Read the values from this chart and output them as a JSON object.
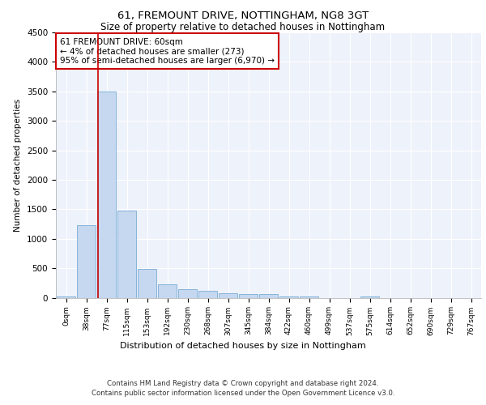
{
  "title1": "61, FREMOUNT DRIVE, NOTTINGHAM, NG8 3GT",
  "title2": "Size of property relative to detached houses in Nottingham",
  "xlabel": "Distribution of detached houses by size in Nottingham",
  "ylabel": "Number of detached properties",
  "footnote1": "Contains HM Land Registry data © Crown copyright and database right 2024.",
  "footnote2": "Contains public sector information licensed under the Open Government Licence v3.0.",
  "bar_labels": [
    "0sqm",
    "38sqm",
    "77sqm",
    "115sqm",
    "153sqm",
    "192sqm",
    "230sqm",
    "268sqm",
    "307sqm",
    "345sqm",
    "384sqm",
    "422sqm",
    "460sqm",
    "499sqm",
    "537sqm",
    "575sqm",
    "614sqm",
    "652sqm",
    "690sqm",
    "729sqm",
    "767sqm"
  ],
  "bar_values": [
    20,
    1230,
    3500,
    1480,
    490,
    230,
    150,
    120,
    80,
    60,
    60,
    20,
    20,
    0,
    0,
    20,
    0,
    0,
    0,
    0,
    0
  ],
  "bar_color": "#c5d8f0",
  "bar_edge_color": "#7aadd4",
  "ylim": [
    0,
    4500
  ],
  "yticks": [
    0,
    500,
    1000,
    1500,
    2000,
    2500,
    3000,
    3500,
    4000,
    4500
  ],
  "marker_color": "#cc0000",
  "annotation_line1": "61 FREMOUNT DRIVE: 60sqm",
  "annotation_line2": "← 4% of detached houses are smaller (273)",
  "annotation_line3": "95% of semi-detached houses are larger (6,970) →",
  "annotation_box_color": "#ffffff",
  "annotation_box_edge": "#cc0000",
  "plot_bg_color": "#eef2fb"
}
